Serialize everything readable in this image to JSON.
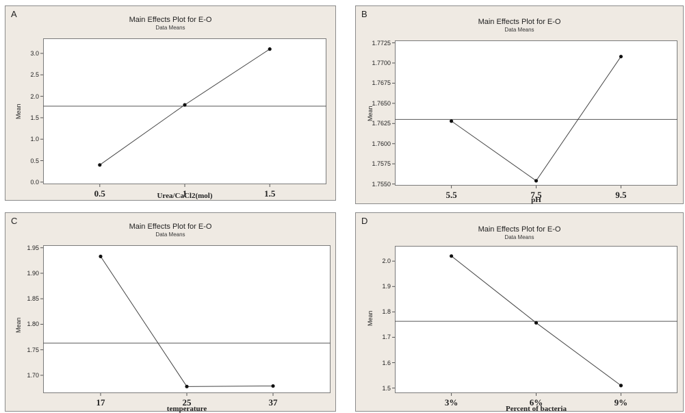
{
  "chart_data": [
    {
      "id": "A",
      "panel_label": "A",
      "type": "line",
      "title": "Main Effects Plot for E-O",
      "subtitle": "Data Means",
      "xlabel": "Urea/CaCl2(mol)",
      "ylabel": "Mean",
      "categories": [
        "0.5",
        "1",
        "1.5"
      ],
      "values": [
        0.4,
        1.8,
        3.1
      ],
      "reference_line": 1.77,
      "ylim": [
        -0.05,
        3.35
      ],
      "yticks": [
        0.0,
        0.5,
        1.0,
        1.5,
        2.0,
        2.5,
        3.0
      ],
      "ytick_labels": [
        "0.0",
        "0.5",
        "1.0",
        "1.5",
        "2.0",
        "2.5",
        "3.0"
      ],
      "grid": false
    },
    {
      "id": "B",
      "panel_label": "B",
      "type": "line",
      "title": "Main Effects Plot for E-O",
      "subtitle": "Data Means",
      "xlabel": "pH",
      "ylabel": "Mean",
      "categories": [
        "5.5",
        "7.5",
        "9.5"
      ],
      "values": [
        1.7628,
        1.7554,
        1.7708
      ],
      "reference_line": 1.763,
      "ylim": [
        1.7548,
        1.7728
      ],
      "yticks": [
        1.755,
        1.7575,
        1.76,
        1.7625,
        1.765,
        1.7675,
        1.77,
        1.7725
      ],
      "ytick_labels": [
        "1.7550",
        "1.7575",
        "1.7600",
        "1.7625",
        "1.7650",
        "1.7675",
        "1.7700",
        "1.7725"
      ],
      "grid": false
    },
    {
      "id": "C",
      "panel_label": "C",
      "type": "line",
      "title": "Main Effects Plot for E-O",
      "subtitle": "Data Means",
      "xlabel": "temperature",
      "ylabel": "Mean",
      "categories": [
        "17",
        "25",
        "37"
      ],
      "values": [
        1.933,
        1.678,
        1.679
      ],
      "reference_line": 1.763,
      "ylim": [
        1.665,
        1.955
      ],
      "yticks": [
        1.7,
        1.75,
        1.8,
        1.85,
        1.9,
        1.95
      ],
      "ytick_labels": [
        "1.70",
        "1.75",
        "1.80",
        "1.85",
        "1.90",
        "1.95"
      ],
      "grid": false
    },
    {
      "id": "D",
      "panel_label": "D",
      "type": "line",
      "title": "Main Effects Plot for E-O",
      "subtitle": "Data Means",
      "xlabel": "Percent of bacteria",
      "ylabel": "Mean",
      "categories": [
        "3%",
        "6%",
        "9%"
      ],
      "values": [
        2.02,
        1.757,
        1.51
      ],
      "reference_line": 1.763,
      "ylim": [
        1.48,
        2.06
      ],
      "yticks": [
        1.5,
        1.6,
        1.7,
        1.8,
        1.9,
        2.0
      ],
      "ytick_labels": [
        "1.5",
        "1.6",
        "1.7",
        "1.8",
        "1.9",
        "2.0"
      ],
      "grid": false
    }
  ]
}
